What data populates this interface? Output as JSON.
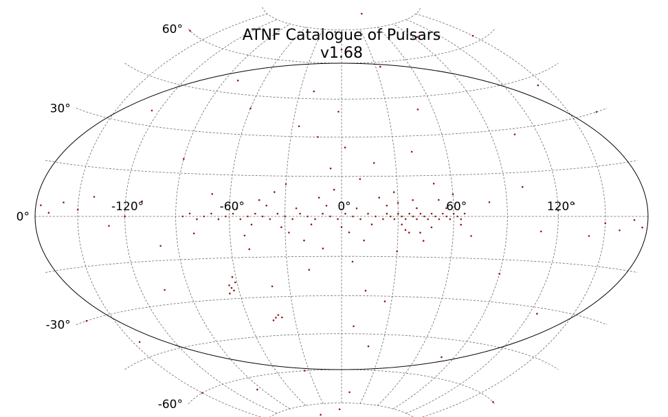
{
  "chart_data": {
    "type": "scatter",
    "title": "ATNF Catalogue of Pulsars",
    "subtitle": "v1.68",
    "projection": "hammer",
    "coordinates": "galactic",
    "marker_color": "#8b1a1a",
    "grid": true,
    "lon_grid_step_deg": 30,
    "lat_grid_step_deg": 15,
    "lon_tick_labels": [
      {
        "lon": -120,
        "label": "-120°"
      },
      {
        "lon": -60,
        "label": "-60°"
      },
      {
        "lon": 0,
        "label": "0°"
      },
      {
        "lon": 60,
        "label": "60°"
      },
      {
        "lon": 120,
        "label": "120°"
      }
    ],
    "lat_tick_labels": [
      {
        "lat": 60,
        "label": "60°"
      },
      {
        "lat": 30,
        "label": "30°"
      },
      {
        "lat": 0,
        "label": "0°"
      },
      {
        "lat": -30,
        "label": "-30°"
      },
      {
        "lat": -60,
        "label": "-60°"
      }
    ],
    "xlim": [
      -180,
      180
    ],
    "ylim": [
      -90,
      90
    ],
    "series": [
      {
        "points": [
          [
            -58,
            1
          ],
          [
            -54,
            -1
          ],
          [
            -50,
            0
          ],
          [
            -46,
            1
          ],
          [
            -42,
            0
          ],
          [
            -38,
            -1
          ],
          [
            -34,
            1
          ],
          [
            -30,
            0
          ],
          [
            -26,
            -1
          ],
          [
            -22,
            1
          ],
          [
            -18,
            0
          ],
          [
            -14,
            -1
          ],
          [
            -10,
            1
          ],
          [
            -6,
            0
          ],
          [
            -2,
            -1
          ],
          [
            2,
            1
          ],
          [
            6,
            0
          ],
          [
            10,
            -1
          ],
          [
            14,
            1
          ],
          [
            18,
            0
          ],
          [
            22,
            -1
          ],
          [
            24,
            1
          ],
          [
            26,
            0
          ],
          [
            28,
            -1
          ],
          [
            30,
            1
          ],
          [
            32,
            0
          ],
          [
            34,
            -1
          ],
          [
            36,
            1
          ],
          [
            38,
            0
          ],
          [
            40,
            -1
          ],
          [
            42,
            1
          ],
          [
            44,
            0
          ],
          [
            46,
            -1
          ],
          [
            48,
            1
          ],
          [
            50,
            0
          ],
          [
            52,
            -1
          ],
          [
            54,
            1
          ],
          [
            56,
            0
          ],
          [
            58,
            -1
          ],
          [
            60,
            1
          ],
          [
            62,
            0
          ],
          [
            64,
            -1
          ],
          [
            66,
            1
          ],
          [
            -62,
            0
          ],
          [
            -66,
            -1
          ],
          [
            -70,
            1
          ],
          [
            -74,
            0
          ],
          [
            -78,
            -1
          ],
          [
            -82,
            1
          ],
          [
            -86,
            0
          ],
          [
            -56,
            3
          ],
          [
            -48,
            -3
          ],
          [
            -40,
            4
          ],
          [
            -32,
            -4
          ],
          [
            -24,
            3
          ],
          [
            -16,
            -3
          ],
          [
            -8,
            4
          ],
          [
            0,
            -4
          ],
          [
            8,
            3
          ],
          [
            16,
            -3
          ],
          [
            24,
            4
          ],
          [
            32,
            -3
          ],
          [
            40,
            3
          ],
          [
            48,
            -4
          ],
          [
            56,
            3
          ],
          [
            64,
            -3
          ],
          [
            -44,
            6
          ],
          [
            -28,
            -6
          ],
          [
            -12,
            7
          ],
          [
            4,
            -6
          ],
          [
            20,
            7
          ],
          [
            36,
            -6
          ],
          [
            52,
            6
          ],
          [
            -36,
            9
          ],
          [
            -20,
            -9
          ],
          [
            -4,
            10
          ],
          [
            12,
            -9
          ],
          [
            28,
            9
          ],
          [
            44,
            -9
          ],
          [
            60,
            8
          ],
          [
            -52,
            -7
          ],
          [
            -60,
            5
          ],
          [
            30,
            5
          ],
          [
            34,
            -5
          ],
          [
            38,
            6
          ],
          [
            42,
            -6
          ],
          [
            -30,
            12
          ],
          [
            -10,
            -12
          ],
          [
            10,
            14
          ],
          [
            30,
            -13
          ],
          [
            50,
            12
          ],
          [
            -50,
            -12
          ],
          [
            -70,
            8
          ],
          [
            -80,
            -6
          ],
          [
            70,
            -7
          ],
          [
            80,
            5
          ],
          [
            -6,
            18
          ],
          [
            6,
            -17
          ],
          [
            18,
            20
          ],
          [
            -18,
            -20
          ],
          [
            2,
            26
          ],
          [
            -14,
            30
          ],
          [
            14,
            -28
          ],
          [
            26,
            -32
          ],
          [
            -26,
            34
          ],
          [
            -40,
            -26
          ],
          [
            40,
            24
          ],
          [
            -2,
            40
          ],
          [
            8,
            -42
          ],
          [
            -20,
            48
          ],
          [
            20,
            -50
          ],
          [
            -34,
            -60
          ],
          [
            34,
            58
          ],
          [
            0,
            66
          ],
          [
            -10,
            74
          ],
          [
            10,
            -70
          ],
          [
            -4,
            -78
          ],
          [
            50,
            40
          ],
          [
            -60,
            40
          ],
          [
            90,
            -20
          ],
          [
            -90,
            20
          ],
          [
            -100,
            -10
          ],
          [
            100,
            10
          ],
          [
            -110,
            5
          ],
          [
            110,
            -5
          ],
          [
            -120,
            0
          ],
          [
            120,
            2
          ],
          [
            -130,
            -3
          ],
          [
            130,
            4
          ],
          [
            -140,
            6
          ],
          [
            140,
            -6
          ],
          [
            -150,
            2
          ],
          [
            150,
            -2
          ],
          [
            -160,
            4
          ],
          [
            160,
            -4
          ],
          [
            -170,
            1
          ],
          [
            170,
            -1
          ],
          [
            -176,
            3
          ],
          [
            176,
            -3
          ],
          [
            -105,
            -25
          ],
          [
            105,
            28
          ],
          [
            -125,
            35
          ],
          [
            125,
            -32
          ],
          [
            -145,
            -40
          ],
          [
            145,
            42
          ],
          [
            -80,
            50
          ],
          [
            80,
            -52
          ],
          [
            -65,
            -25
          ],
          [
            -63,
            -27
          ],
          [
            -61,
            -24
          ],
          [
            -66,
            -28
          ],
          [
            -62,
            -22
          ],
          [
            -64,
            -26
          ],
          [
            -42,
            -38
          ],
          [
            -40,
            -37
          ],
          [
            -44,
            -39
          ],
          [
            -38,
            -38
          ],
          [
            -150,
            -60
          ],
          [
            150,
            62
          ],
          [
            -95,
            -65
          ],
          [
            95,
            68
          ],
          [
            -50,
            -80
          ],
          [
            60,
            82
          ],
          [
            -170,
            -30
          ],
          [
            170,
            30
          ],
          [
            -175,
            60
          ],
          [
            175,
            -60
          ]
        ]
      }
    ]
  }
}
